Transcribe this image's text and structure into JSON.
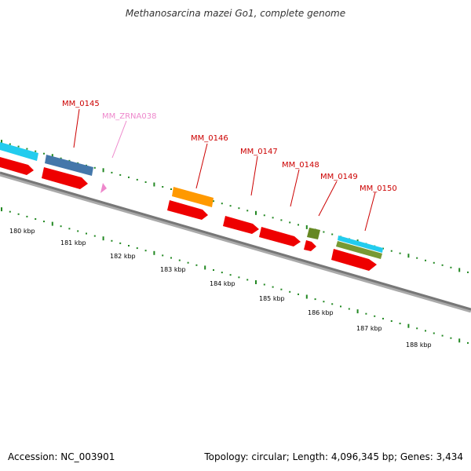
{
  "title": "Methanosarcina mazei Go1, complete genome",
  "footer": {
    "accession": "Accession: NC_003901",
    "topology": "Topology: circular; Length: 4,096,345 bp; Genes: 3,434"
  },
  "colors": {
    "cds_red": "#ee0000",
    "trna_pink": "#ee88cc",
    "backbone": "#777777",
    "tick_green": "#228822",
    "label_red": "#cc0000",
    "label_pink": "#ee88cc",
    "cyan": "#22ccee",
    "steel": "#4477aa",
    "orange": "#ff9900",
    "olive": "#668822"
  },
  "gene_labels": [
    {
      "id": "MM_0145",
      "text": "MM_0145",
      "color": "label_red"
    },
    {
      "id": "MM_ZRNA038",
      "text": "MM_ZRNA038",
      "color": "label_pink"
    },
    {
      "id": "MM_0146",
      "text": "MM_0146",
      "color": "label_red"
    },
    {
      "id": "MM_0147",
      "text": "MM_0147",
      "color": "label_red"
    },
    {
      "id": "MM_0148",
      "text": "MM_0148",
      "color": "label_red"
    },
    {
      "id": "MM_0149",
      "text": "MM_0149",
      "color": "label_red"
    },
    {
      "id": "MM_0150",
      "text": "MM_0150",
      "color": "label_red"
    }
  ],
  "kbp_labels": [
    "180 kbp",
    "181 kbp",
    "182 kbp",
    "183 kbp",
    "184 kbp",
    "185 kbp",
    "186 kbp",
    "187 kbp",
    "188 kbp"
  ]
}
